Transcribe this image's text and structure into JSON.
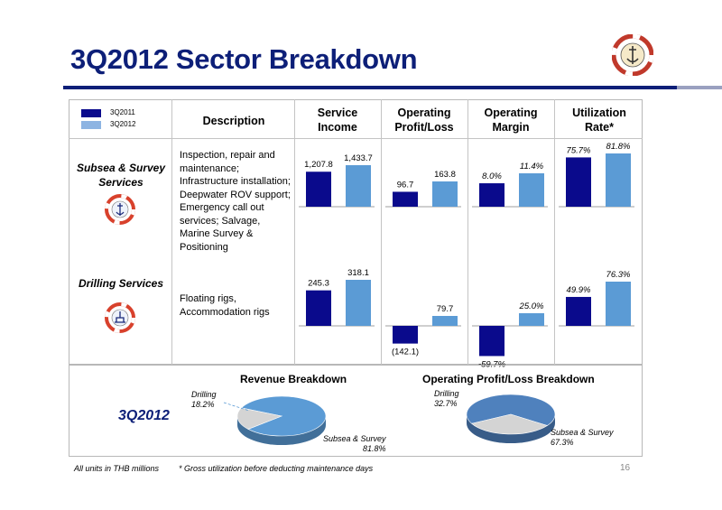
{
  "page": {
    "title": "3Q2012 Sector Breakdown",
    "page_number": "16"
  },
  "legend": [
    {
      "label": "3Q2011",
      "color": "#0a0a8c"
    },
    {
      "label": "3Q2012",
      "color": "#5b9bd5"
    }
  ],
  "headers": {
    "description": "Description",
    "service_income": "Service Income",
    "operating_profit": "Operating Profit/Loss",
    "operating_margin": "Operating Margin",
    "utilization_rate": "Utilization Rate*"
  },
  "sectors": [
    {
      "name": "Subsea & Survey Services",
      "description": "Inspection, repair and maintenance; Infrastructure installation; Deepwater ROV support; Emergency call out services; Salvage, Marine Survey & Positioning",
      "emblem": "lifebuoy-anchor-emblem"
    },
    {
      "name": "Drilling Services",
      "description": "Floating rigs, Accommodation rigs",
      "emblem": "lifebuoy-rig-emblem"
    }
  ],
  "bottom": {
    "period_label": "3Q2012",
    "revenue_title": "Revenue Breakdown",
    "profit_title": "Operating Profit/Loss Breakdown"
  },
  "footnotes": {
    "units": "All units in THB millions",
    "utilization_note": "* Gross utilization before deducting maintenance days"
  },
  "chart_data": [
    {
      "type": "bar",
      "sector": "Subsea & Survey Services",
      "metric": "Service Income",
      "categories": [
        "3Q2011",
        "3Q2012"
      ],
      "values": [
        1207.8,
        1433.7
      ],
      "labels": [
        "1,207.8",
        "1,433.7"
      ]
    },
    {
      "type": "bar",
      "sector": "Subsea & Survey Services",
      "metric": "Operating Profit/Loss",
      "categories": [
        "3Q2011",
        "3Q2012"
      ],
      "values": [
        96.7,
        163.8
      ],
      "labels": [
        "96.7",
        "163.8"
      ]
    },
    {
      "type": "bar",
      "sector": "Subsea & Survey Services",
      "metric": "Operating Margin",
      "categories": [
        "3Q2011",
        "3Q2012"
      ],
      "values": [
        8.0,
        11.4
      ],
      "labels": [
        "8.0%",
        "11.4%"
      ]
    },
    {
      "type": "bar",
      "sector": "Subsea & Survey Services",
      "metric": "Utilization Rate",
      "categories": [
        "3Q2011",
        "3Q2012"
      ],
      "values": [
        75.7,
        81.8
      ],
      "labels": [
        "75.7%",
        "81.8%"
      ]
    },
    {
      "type": "bar",
      "sector": "Drilling Services",
      "metric": "Service Income",
      "categories": [
        "3Q2011",
        "3Q2012"
      ],
      "values": [
        245.3,
        318.1
      ],
      "labels": [
        "245.3",
        "318.1"
      ]
    },
    {
      "type": "bar",
      "sector": "Drilling Services",
      "metric": "Operating Profit/Loss",
      "categories": [
        "3Q2011",
        "3Q2012"
      ],
      "values": [
        -142.1,
        79.7
      ],
      "labels": [
        "(142.1)",
        "79.7"
      ]
    },
    {
      "type": "bar",
      "sector": "Drilling Services",
      "metric": "Operating Margin",
      "categories": [
        "3Q2011",
        "3Q2012"
      ],
      "values": [
        -59.7,
        25.0
      ],
      "labels": [
        "-59.7%",
        "25.0%"
      ]
    },
    {
      "type": "bar",
      "sector": "Drilling Services",
      "metric": "Utilization Rate",
      "categories": [
        "3Q2011",
        "3Q2012"
      ],
      "values": [
        49.9,
        76.3
      ],
      "labels": [
        "49.9%",
        "76.3%"
      ]
    },
    {
      "type": "pie",
      "title": "Revenue Breakdown",
      "slices": [
        {
          "name": "Subsea & Survey",
          "value": 81.8,
          "label": "81.8%",
          "color": "#5b9bd5"
        },
        {
          "name": "Drilling",
          "value": 18.2,
          "label": "18.2%",
          "color": "#d4d4d4"
        }
      ]
    },
    {
      "type": "pie",
      "title": "Operating Profit/Loss Breakdown",
      "slices": [
        {
          "name": "Subsea & Survey",
          "value": 67.3,
          "label": "67.3%",
          "color": "#4f81bd"
        },
        {
          "name": "Drilling",
          "value": 32.7,
          "label": "32.7%",
          "color": "#d4d4d4"
        }
      ]
    }
  ]
}
